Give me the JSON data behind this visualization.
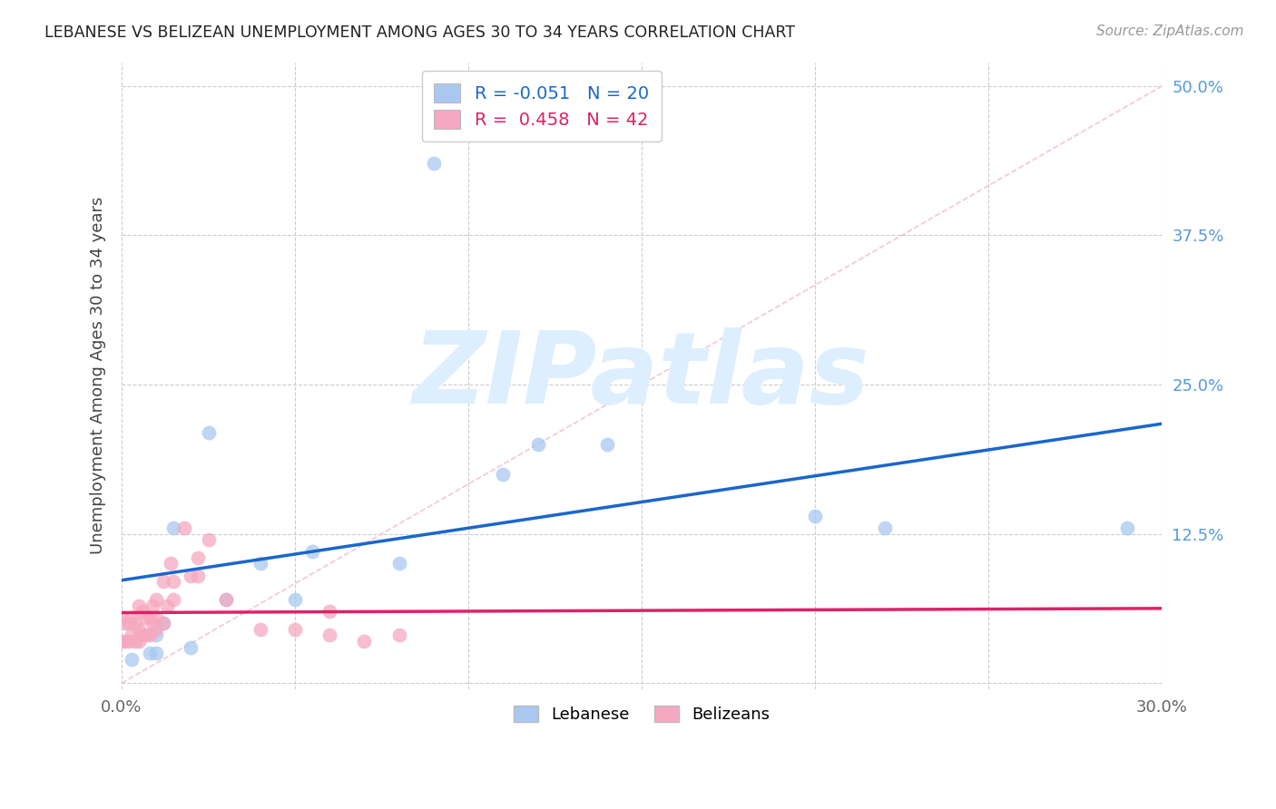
{
  "title": "LEBANESE VS BELIZEAN UNEMPLOYMENT AMONG AGES 30 TO 34 YEARS CORRELATION CHART",
  "source": "Source: ZipAtlas.com",
  "ylabel": "Unemployment Among Ages 30 to 34 years",
  "xlim": [
    0.0,
    0.3
  ],
  "ylim": [
    -0.005,
    0.52
  ],
  "yticks": [
    0.0,
    0.125,
    0.25,
    0.375,
    0.5
  ],
  "ytick_labels": [
    "",
    "12.5%",
    "25.0%",
    "37.5%",
    "50.0%"
  ],
  "xticks": [
    0.0,
    0.05,
    0.1,
    0.15,
    0.2,
    0.25,
    0.3
  ],
  "xtick_labels": [
    "0.0%",
    "",
    "",
    "",
    "",
    "",
    "30.0%"
  ],
  "legend_R_lebanese": "-0.051",
  "legend_N_lebanese": "20",
  "legend_R_belizean": "0.458",
  "legend_N_belizean": "42",
  "lebanese_color": "#a8c8f0",
  "belizean_color": "#f5a8c0",
  "reg_line_lebanese_color": "#1a66cc",
  "reg_line_belizean_color": "#dd2266",
  "diagonal_color": "#f0b8cc",
  "watermark_color": "#ddeeff",
  "lebanese_x": [
    0.003,
    0.008,
    0.01,
    0.01,
    0.012,
    0.015,
    0.02,
    0.025,
    0.03,
    0.04,
    0.05,
    0.055,
    0.08,
    0.09,
    0.11,
    0.12,
    0.14,
    0.2,
    0.22,
    0.29
  ],
  "lebanese_y": [
    0.02,
    0.025,
    0.025,
    0.04,
    0.05,
    0.13,
    0.03,
    0.21,
    0.07,
    0.1,
    0.07,
    0.11,
    0.1,
    0.435,
    0.175,
    0.2,
    0.2,
    0.14,
    0.13,
    0.13
  ],
  "belizean_x": [
    0.0,
    0.0,
    0.001,
    0.001,
    0.002,
    0.002,
    0.003,
    0.003,
    0.004,
    0.004,
    0.005,
    0.005,
    0.005,
    0.006,
    0.006,
    0.007,
    0.007,
    0.008,
    0.008,
    0.009,
    0.009,
    0.01,
    0.01,
    0.01,
    0.012,
    0.012,
    0.013,
    0.014,
    0.015,
    0.015,
    0.018,
    0.02,
    0.022,
    0.022,
    0.025,
    0.03,
    0.04,
    0.05,
    0.06,
    0.06,
    0.07,
    0.08
  ],
  "belizean_y": [
    0.035,
    0.055,
    0.035,
    0.05,
    0.035,
    0.05,
    0.04,
    0.055,
    0.035,
    0.05,
    0.035,
    0.045,
    0.065,
    0.04,
    0.06,
    0.04,
    0.055,
    0.04,
    0.055,
    0.05,
    0.065,
    0.045,
    0.055,
    0.07,
    0.05,
    0.085,
    0.065,
    0.1,
    0.07,
    0.085,
    0.13,
    0.09,
    0.09,
    0.105,
    0.12,
    0.07,
    0.045,
    0.045,
    0.04,
    0.06,
    0.035,
    0.04
  ]
}
